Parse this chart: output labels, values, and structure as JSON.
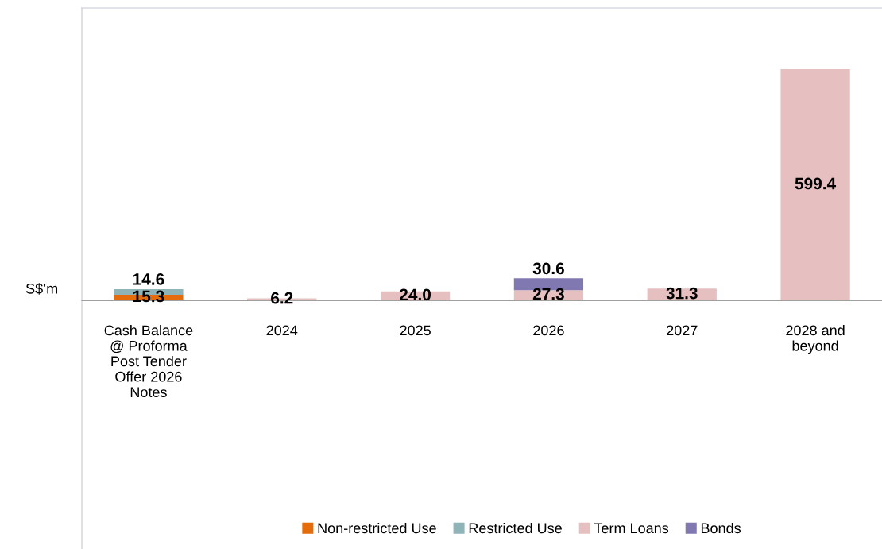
{
  "chart_data": {
    "type": "bar",
    "stacked": true,
    "ylabel": "S$’m",
    "categories": [
      "Cash Balance\n@ Proforma\nPost Tender\nOffer 2026\nNotes",
      "2024",
      "2025",
      "2026",
      "2027",
      "2028 and\nbeyond"
    ],
    "series": [
      {
        "name": "Non-restricted Use",
        "color": "#e46c0a",
        "values": [
          15.3,
          null,
          null,
          null,
          null,
          null
        ],
        "value_labels": [
          "15.3",
          null,
          null,
          null,
          null,
          null
        ]
      },
      {
        "name": "Restricted Use",
        "color": "#8fb4b8",
        "values": [
          14.6,
          null,
          null,
          null,
          null,
          null
        ],
        "value_labels": [
          "14.6",
          null,
          null,
          null,
          null,
          null
        ]
      },
      {
        "name": "Term Loans",
        "color": "#e6c0c0",
        "values": [
          null,
          6.2,
          24.0,
          27.3,
          31.3,
          599.4
        ],
        "value_labels": [
          null,
          "6.2",
          "24.0",
          "27.3",
          "31.3",
          "599.4"
        ]
      },
      {
        "name": "Bonds",
        "color": "#8078b0",
        "values": [
          null,
          null,
          null,
          30.6,
          null,
          null
        ],
        "value_labels": [
          null,
          null,
          null,
          "30.6",
          null,
          null
        ]
      }
    ],
    "ylim": [
      -643,
      758
    ],
    "tick_labels": "x",
    "legend": "bottom",
    "grid": false
  }
}
